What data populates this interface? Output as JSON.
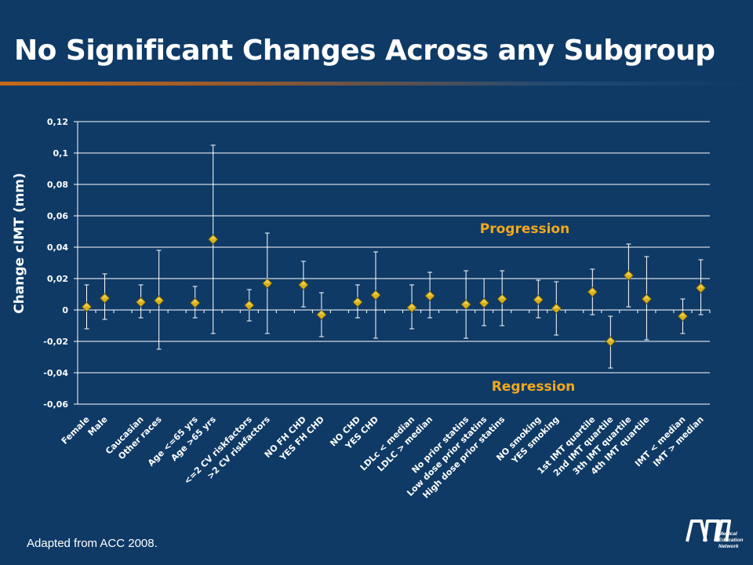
{
  "slide": {
    "title": "No Significant Changes Across any Subgroup",
    "footer": "Adapted from ACC 2008.",
    "logo_text": [
      "Medical",
      "Education",
      "Network"
    ]
  },
  "colors": {
    "background": "#0f3a66",
    "accent_text": "#f2a81d",
    "marker": "#d8b21c",
    "axis": "#ffffff"
  },
  "chart_data": {
    "type": "scatter",
    "title": "",
    "xlabel": "",
    "ylabel": "Change cIMT (mm)",
    "ylim": [
      -0.06,
      0.12
    ],
    "yticks": [
      0.12,
      0.1,
      0.08,
      0.06,
      0.04,
      0.02,
      0,
      -0.02,
      -0.04,
      -0.06
    ],
    "ytick_labels": [
      "0,12",
      "0,1",
      "0,08",
      "0,06",
      "0,04",
      "0,02",
      "0",
      "-0,02",
      "-0,04",
      "-0,06"
    ],
    "grid": true,
    "error_bars": true,
    "annotations": [
      "Progression",
      "Regression"
    ],
    "categories": [
      "Female",
      "Male",
      "",
      "Caucasian",
      "Other races",
      "",
      "Age <=65 yrs",
      "Age >65 yrs",
      "",
      "<=2 CV riskfactors",
      ">2 CV riskfactors",
      "",
      "NO  FH CHD",
      "YES  FH CHD",
      "",
      "NO CHD",
      "YES CHD",
      "",
      "LDLc < median",
      "LDLC > median",
      "",
      "No prior statins",
      "Low dose prior statins",
      "High dose prior statins",
      "",
      "NO smoking",
      "YES smoking",
      "",
      "1st IMT quartile",
      "2nd IMT quartile",
      "3th IMT quartile",
      "4th IMT quartile",
      "",
      "IMT < median",
      "IMT > median"
    ],
    "values": [
      0.002,
      0.0075,
      null,
      0.005,
      0.006,
      null,
      0.0045,
      0.045,
      null,
      0.003,
      0.017,
      null,
      0.016,
      -0.003,
      null,
      0.005,
      0.0095,
      null,
      0.0015,
      0.009,
      null,
      0.0035,
      0.0045,
      0.007,
      null,
      0.0065,
      0.001,
      null,
      0.0115,
      -0.02,
      0.022,
      0.007,
      null,
      -0.004,
      0.014
    ],
    "upper": [
      0.016,
      0.023,
      null,
      0.016,
      0.038,
      null,
      0.015,
      0.105,
      null,
      0.013,
      0.049,
      null,
      0.031,
      0.011,
      null,
      0.016,
      0.037,
      null,
      0.016,
      0.024,
      null,
      0.025,
      0.02,
      0.025,
      null,
      0.019,
      0.018,
      null,
      0.026,
      -0.004,
      0.042,
      0.034,
      null,
      0.007,
      0.032
    ],
    "lower": [
      -0.012,
      -0.006,
      null,
      -0.005,
      -0.025,
      null,
      -0.005,
      -0.015,
      null,
      -0.007,
      -0.015,
      null,
      0.002,
      -0.017,
      null,
      -0.005,
      -0.018,
      null,
      -0.012,
      -0.005,
      null,
      -0.018,
      -0.01,
      -0.01,
      null,
      -0.005,
      -0.016,
      null,
      -0.003,
      -0.037,
      0.002,
      -0.019,
      null,
      -0.015,
      -0.003
    ]
  }
}
